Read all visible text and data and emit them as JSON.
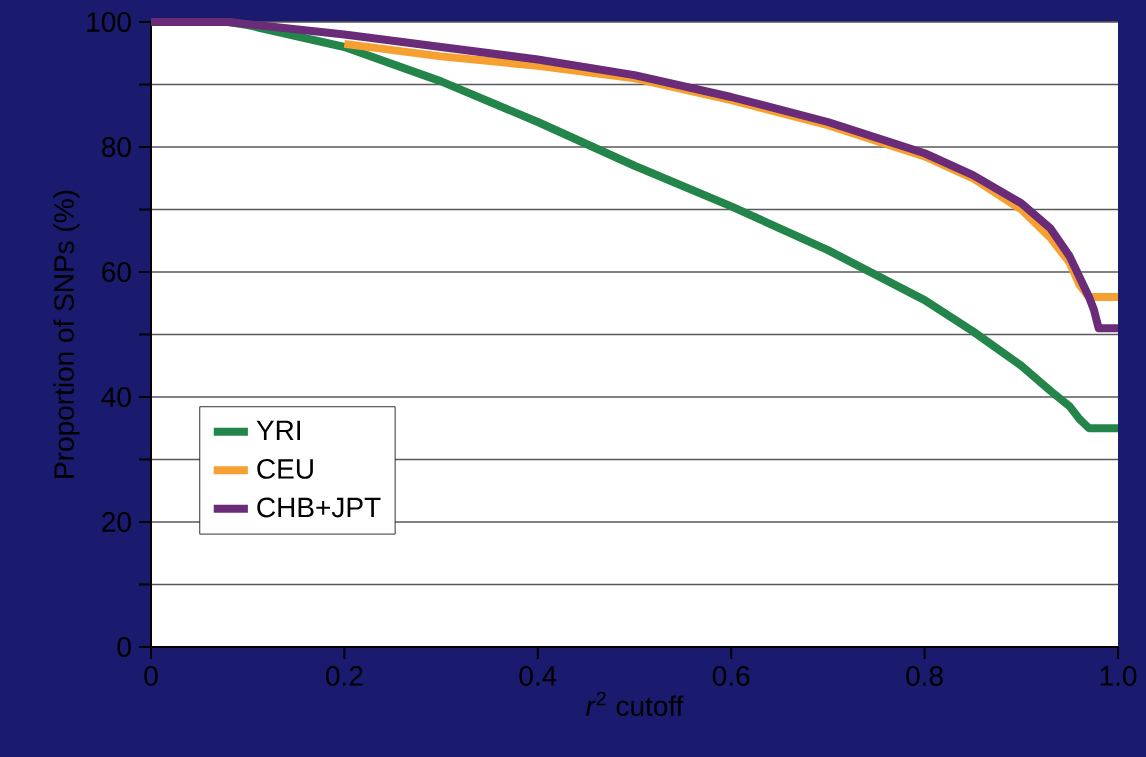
{
  "chart_data": {
    "type": "line",
    "xlabel": "*r*$^{2}$ cutoff",
    "ylabel": "Proportion of SNPs (%)",
    "xlim": [
      0,
      1.0
    ],
    "xticks": [
      0,
      {
        "value": 0.2,
        "label": "0.2"
      },
      {
        "value": 0.4,
        "label": "0.4"
      },
      {
        "value": 0.6,
        "label": "0.6"
      },
      {
        "value": 0.8,
        "label": "0.8"
      },
      {
        "value": 1.0,
        "label": "1.0"
      }
    ],
    "ylim": [
      0,
      100
    ],
    "yticks": [
      0,
      {
        "value": 10,
        "label": null
      },
      20,
      {
        "value": 30,
        "label": null
      },
      40,
      {
        "value": 50,
        "label": null
      },
      60,
      {
        "value": 70,
        "label": null
      },
      80,
      {
        "value": 90,
        "label": null
      },
      100
    ],
    "grid": "y",
    "legend": "bottom left",
    "series": [
      {
        "name": "YRI",
        "color": "#23854a",
        "x": [
          0,
          0.08,
          0.1,
          0.2,
          0.3,
          0.4,
          0.5,
          0.6,
          0.7,
          0.8,
          0.85,
          0.9,
          0.93,
          0.95,
          0.96,
          0.97,
          1.0
        ],
        "values": [
          100,
          100,
          99.5,
          96,
          90.5,
          84,
          77,
          70.5,
          63.5,
          55.5,
          50.5,
          45,
          41,
          38.5,
          36.5,
          35,
          35
        ]
      },
      {
        "name": "CEU",
        "color": "#f5a030",
        "x": [
          0.2,
          0.3,
          0.4,
          0.5,
          0.6,
          0.7,
          0.8,
          0.85,
          0.9,
          0.93,
          0.95,
          0.96,
          0.97,
          1.0
        ],
        "values": [
          96.5,
          94.5,
          93,
          91,
          87.5,
          83.5,
          78.5,
          75,
          70,
          65.5,
          61.5,
          58,
          56,
          56
        ]
      },
      {
        "name": "CHB+JPT",
        "color": "#6a2b78",
        "x": [
          0,
          0.08,
          0.2,
          0.3,
          0.4,
          0.5,
          0.6,
          0.7,
          0.8,
          0.85,
          0.9,
          0.93,
          0.95,
          0.97,
          0.975,
          0.98,
          1.0
        ],
        "values": [
          100,
          100,
          98,
          96,
          94,
          91.5,
          88,
          84,
          79,
          75.5,
          71,
          67,
          62.5,
          56,
          54,
          51,
          51
        ]
      }
    ]
  }
}
